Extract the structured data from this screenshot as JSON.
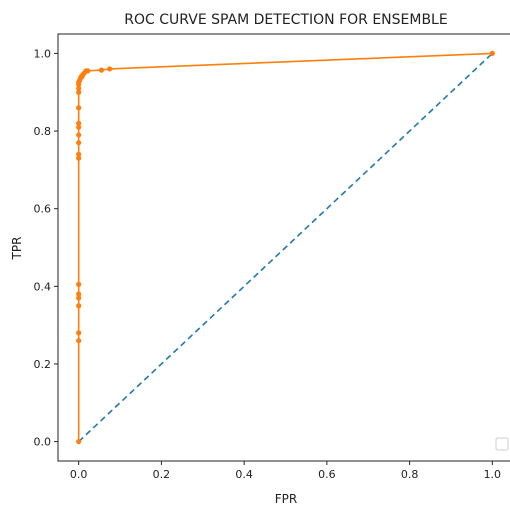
{
  "chart_data": {
    "type": "line",
    "title": "ROC CURVE SPAM DETECTION FOR ENSEMBLE",
    "xlabel": "FPR",
    "ylabel": "TPR",
    "xlim": [
      -0.05,
      1.05
    ],
    "ylim": [
      -0.05,
      1.05
    ],
    "xticks": [
      0.0,
      0.2,
      0.4,
      0.6,
      0.8,
      1.0
    ],
    "yticks": [
      0.0,
      0.2,
      0.4,
      0.6,
      0.8,
      1.0
    ],
    "grid": false,
    "legend": "lower-right",
    "series": [
      {
        "style": "dashed",
        "color": "#1f77b4",
        "x": [
          0.0,
          1.0
        ],
        "y": [
          0.0,
          1.0
        ]
      },
      {
        "style": "solid-markers",
        "color": "#ff7f0e",
        "x": [
          0.0,
          0.0,
          0.0,
          0.0,
          0.0,
          0.0,
          0.0,
          0.0,
          0.0,
          0.0,
          0.0,
          0.0,
          0.0,
          0.0,
          0.0,
          0.0,
          0.0,
          0.0,
          0.002,
          0.004,
          0.006,
          0.008,
          0.01,
          0.014,
          0.018,
          0.022,
          0.055,
          0.075,
          1.0
        ],
        "y": [
          0.0,
          0.26,
          0.28,
          0.35,
          0.37,
          0.38,
          0.405,
          0.73,
          0.74,
          0.77,
          0.79,
          0.81,
          0.82,
          0.86,
          0.9,
          0.91,
          0.92,
          0.925,
          0.93,
          0.935,
          0.94,
          0.94,
          0.945,
          0.95,
          0.955,
          0.955,
          0.957,
          0.96,
          1.0
        ]
      }
    ]
  }
}
